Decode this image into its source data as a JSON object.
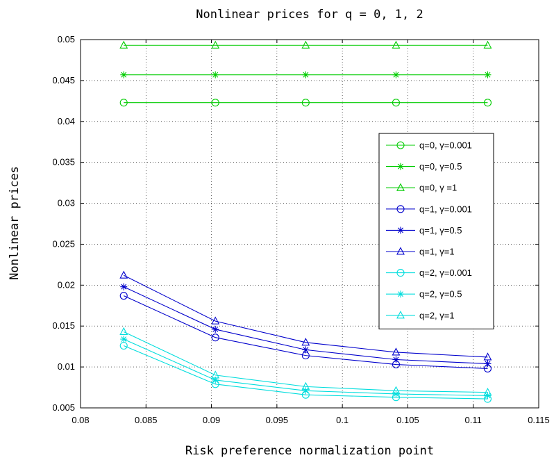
{
  "chart_data": {
    "type": "line",
    "title": "Nonlinear prices for q = 0, 1, 2",
    "xlabel": "Risk preference normalization point",
    "ylabel": "Nonlinear prices",
    "xlim": [
      0.08,
      0.115
    ],
    "ylim": [
      0.005,
      0.05
    ],
    "xticks": [
      "0.08",
      "0.085",
      "0.09",
      "0.095",
      "0.1",
      "0.105",
      "0.11",
      "0.115"
    ],
    "yticks": [
      "0.005",
      "0.01",
      "0.015",
      "0.02",
      "0.025",
      "0.03",
      "0.035",
      "0.04",
      "0.045",
      "0.05"
    ],
    "grid": true,
    "legend_position": "right",
    "x": [
      0.0833,
      0.0903,
      0.0972,
      0.1041,
      0.1111
    ],
    "series": [
      {
        "name": "q=0, γ=0.001",
        "color": "#00cc00",
        "marker": "circle",
        "values": [
          0.0423,
          0.0423,
          0.0423,
          0.0423,
          0.0423
        ]
      },
      {
        "name": "q=0, γ=0.5",
        "color": "#00cc00",
        "marker": "star",
        "values": [
          0.0457,
          0.0457,
          0.0457,
          0.0457,
          0.0457
        ]
      },
      {
        "name": "q=0, γ =1",
        "color": "#00cc00",
        "marker": "triangle",
        "values": [
          0.0493,
          0.0493,
          0.0493,
          0.0493,
          0.0493
        ]
      },
      {
        "name": "q=1, γ=0.001",
        "color": "#0000cc",
        "marker": "circle",
        "values": [
          0.0187,
          0.0136,
          0.0114,
          0.0103,
          0.0098
        ]
      },
      {
        "name": "q=1, γ=0.5",
        "color": "#0000cc",
        "marker": "star",
        "values": [
          0.0198,
          0.0146,
          0.0121,
          0.0109,
          0.0104
        ]
      },
      {
        "name": "q=1, γ=1",
        "color": "#0000cc",
        "marker": "triangle",
        "values": [
          0.0212,
          0.0156,
          0.013,
          0.0118,
          0.0112
        ]
      },
      {
        "name": "q=2, γ=0.001",
        "color": "#00dddd",
        "marker": "circle",
        "values": [
          0.0126,
          0.0079,
          0.0066,
          0.0063,
          0.0061
        ]
      },
      {
        "name": "q=2, γ=0.5",
        "color": "#00dddd",
        "marker": "star",
        "values": [
          0.0134,
          0.0084,
          0.0071,
          0.0067,
          0.0065
        ]
      },
      {
        "name": "q=2, γ=1",
        "color": "#00dddd",
        "marker": "triangle",
        "values": [
          0.0143,
          0.009,
          0.0076,
          0.0071,
          0.0069
        ]
      }
    ]
  }
}
